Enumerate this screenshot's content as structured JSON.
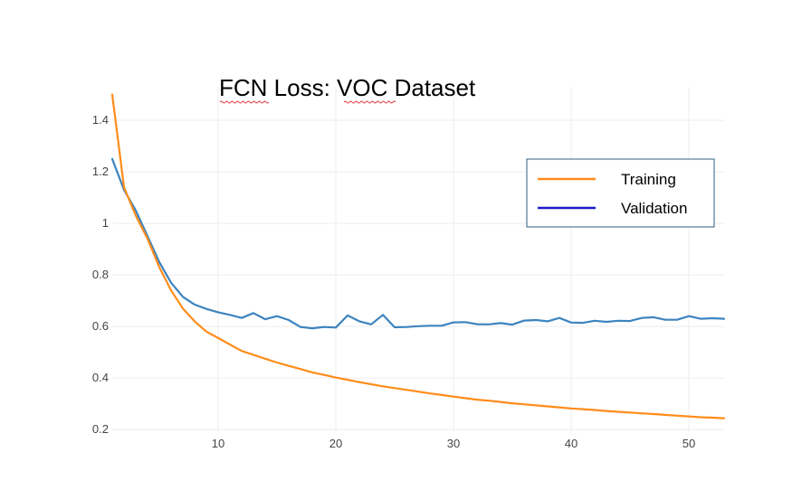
{
  "chart_data": {
    "type": "line",
    "title": "FCN Loss: VOC Dataset",
    "xlabel": "",
    "ylabel": "",
    "xlim": [
      1,
      53
    ],
    "ylim": [
      0.19,
      1.53
    ],
    "x_ticks": [
      10,
      20,
      30,
      40,
      50
    ],
    "y_ticks": [
      0.2,
      0.4,
      0.6,
      0.8,
      1,
      1.2,
      1.4
    ],
    "grid": true,
    "legend_position": "top-right",
    "x": [
      1,
      2,
      3,
      4,
      5,
      6,
      7,
      8,
      9,
      10,
      11,
      12,
      13,
      14,
      15,
      16,
      17,
      18,
      19,
      20,
      21,
      22,
      23,
      24,
      25,
      26,
      27,
      28,
      29,
      30,
      31,
      32,
      33,
      34,
      35,
      36,
      37,
      38,
      39,
      40,
      41,
      42,
      43,
      44,
      45,
      46,
      47,
      48,
      49,
      50,
      51,
      52,
      53
    ],
    "series": [
      {
        "name": "Training",
        "color": "#ff8c1a",
        "legend_color": "#ff8c1a",
        "values": [
          1.5,
          1.14,
          1.03,
          0.94,
          0.83,
          0.74,
          0.67,
          0.62,
          0.58,
          0.555,
          0.53,
          0.505,
          0.49,
          0.475,
          0.46,
          0.447,
          0.435,
          0.422,
          0.412,
          0.402,
          0.393,
          0.384,
          0.376,
          0.368,
          0.361,
          0.354,
          0.347,
          0.34,
          0.334,
          0.328,
          0.322,
          0.316,
          0.312,
          0.307,
          0.302,
          0.298,
          0.294,
          0.29,
          0.286,
          0.282,
          0.279,
          0.276,
          0.272,
          0.269,
          0.266,
          0.263,
          0.26,
          0.257,
          0.254,
          0.251,
          0.248,
          0.246,
          0.244
        ]
      },
      {
        "name": "Validation",
        "color": "#3d84bf",
        "legend_color": "#1a1acc",
        "values": [
          1.25,
          1.13,
          1.05,
          0.95,
          0.85,
          0.77,
          0.715,
          0.685,
          0.668,
          0.655,
          0.645,
          0.633,
          0.652,
          0.628,
          0.64,
          0.625,
          0.598,
          0.593,
          0.598,
          0.596,
          0.643,
          0.62,
          0.608,
          0.645,
          0.597,
          0.598,
          0.601,
          0.603,
          0.603,
          0.616,
          0.617,
          0.609,
          0.608,
          0.613,
          0.607,
          0.623,
          0.625,
          0.62,
          0.633,
          0.615,
          0.614,
          0.622,
          0.618,
          0.622,
          0.621,
          0.633,
          0.636,
          0.626,
          0.626,
          0.64,
          0.63,
          0.632,
          0.63
        ]
      }
    ]
  }
}
